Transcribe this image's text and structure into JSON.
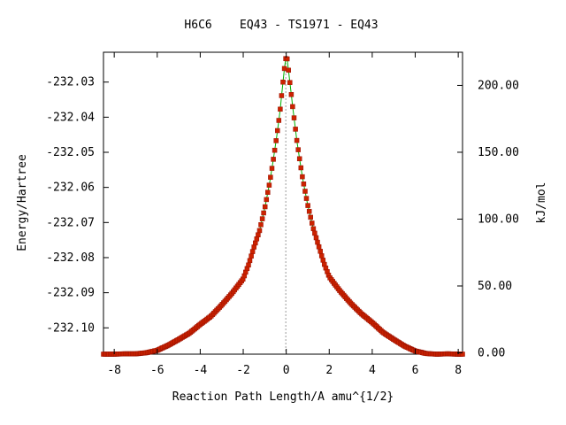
{
  "chart_data": {
    "type": "line",
    "title": "H6C6    EQ43 - TS1971 - EQ43",
    "xlabel": "Reaction Path Length/A amu^{1/2}",
    "ylabel": "Energy/Hartree",
    "y2label": "kJ/mol",
    "xlim": [
      -8.5,
      8.2
    ],
    "ylim": [
      -232.1075,
      -232.0215
    ],
    "y2lim": [
      -1.0,
      224.8
    ],
    "x_ticks": [
      "-8",
      "-6",
      "-4",
      "-2",
      "0",
      "2",
      "4",
      "6",
      "8"
    ],
    "x_tick_values": [
      -8,
      -6,
      -4,
      -2,
      0,
      2,
      4,
      6,
      8
    ],
    "y_ticks": [
      "-232.03",
      "-232.04",
      "-232.05",
      "-232.06",
      "-232.07",
      "-232.08",
      "-232.09",
      "-232.10"
    ],
    "y_tick_values": [
      -232.03,
      -232.04,
      -232.05,
      -232.06,
      -232.07,
      -232.08,
      -232.09,
      -232.1
    ],
    "y2_ticks": [
      "200.00",
      "150.00",
      "100.00",
      "50.00",
      "0.00"
    ],
    "y2_tick_values": [
      200,
      150,
      100,
      50,
      0
    ],
    "ts_marker_x": -0.02,
    "colors": {
      "line": "#00b000",
      "marker": "#cc2200",
      "ts_line": "#999999"
    },
    "series": [
      {
        "values": [
          [
            -8.5,
            -232.1075
          ],
          [
            -8.0,
            -232.1075
          ],
          [
            -7.5,
            -232.1074
          ],
          [
            -7.0,
            -232.1074
          ],
          [
            -6.5,
            -232.1071
          ],
          [
            -6.0,
            -232.1064
          ],
          [
            -5.5,
            -232.105
          ],
          [
            -5.0,
            -232.1033
          ],
          [
            -4.5,
            -232.1015
          ],
          [
            -4.0,
            -232.099
          ],
          [
            -3.5,
            -232.0967
          ],
          [
            -3.0,
            -232.0935
          ],
          [
            -2.5,
            -232.09
          ],
          [
            -2.0,
            -232.086
          ],
          [
            -1.75,
            -232.082
          ],
          [
            -1.5,
            -232.077
          ],
          [
            -1.25,
            -232.0725
          ],
          [
            -1.0,
            -232.066
          ],
          [
            -0.75,
            -232.058
          ],
          [
            -0.5,
            -232.048
          ],
          [
            -0.3,
            -232.039
          ],
          [
            -0.15,
            -232.03
          ],
          [
            -0.05,
            -232.024
          ],
          [
            0.0,
            -232.0228
          ],
          [
            0.05,
            -232.0235
          ],
          [
            0.15,
            -232.029
          ],
          [
            0.3,
            -232.037
          ],
          [
            0.5,
            -232.047
          ],
          [
            0.75,
            -232.057
          ],
          [
            1.0,
            -232.065
          ],
          [
            1.25,
            -232.0715
          ],
          [
            1.5,
            -232.0765
          ],
          [
            1.75,
            -232.0815
          ],
          [
            2.0,
            -232.0855
          ],
          [
            2.5,
            -232.0895
          ],
          [
            3.0,
            -232.093
          ],
          [
            3.5,
            -232.096
          ],
          [
            4.0,
            -232.0985
          ],
          [
            4.5,
            -232.1013
          ],
          [
            5.0,
            -232.1033
          ],
          [
            5.5,
            -232.1052
          ],
          [
            6.0,
            -232.1066
          ],
          [
            6.5,
            -232.1073
          ],
          [
            7.0,
            -232.1075
          ],
          [
            7.5,
            -232.1074
          ],
          [
            8.0,
            -232.1075
          ],
          [
            8.2,
            -232.1075
          ]
        ]
      }
    ]
  }
}
